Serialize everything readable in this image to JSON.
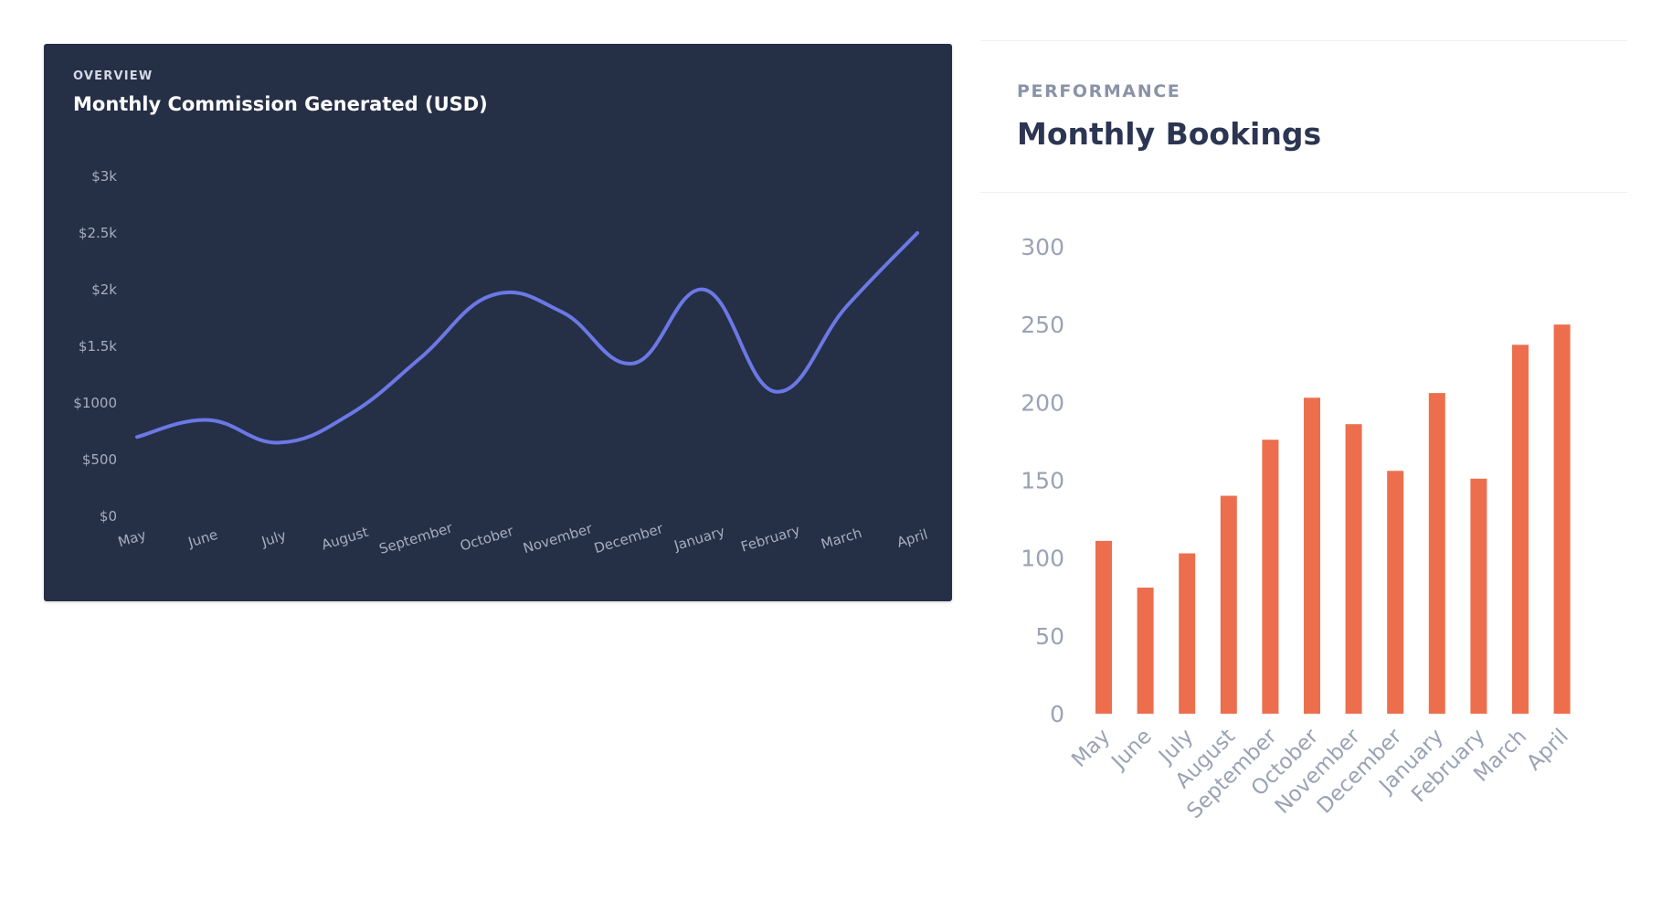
{
  "commission_card": {
    "eyebrow": "OVERVIEW",
    "title": "Monthly Commission Generated (USD)"
  },
  "bookings_card": {
    "eyebrow": "PERFORMANCE",
    "title": "Monthly Bookings"
  },
  "colors": {
    "dark_card_bg": "#252f46",
    "line": "#6b78e5",
    "bar": "#ed6e4d",
    "axis_text_dark": "#a7aec0",
    "axis_text_light": "#9aa2b4"
  },
  "chart_data": [
    {
      "type": "line",
      "x": [
        "May",
        "June",
        "July",
        "August",
        "September",
        "October",
        "November",
        "December",
        "January",
        "February",
        "March",
        "April"
      ],
      "series": [
        {
          "values": [
            700,
            850,
            650,
            900,
            1400,
            1950,
            1800,
            1350,
            2000,
            1100,
            1850,
            2500
          ]
        }
      ],
      "yticks": [
        "$0",
        "$500",
        "$1000",
        "$1.5k",
        "$2k",
        "$2.5k",
        "$3k"
      ],
      "ytick_values": [
        0,
        500,
        1000,
        1500,
        2000,
        2500,
        3000
      ],
      "ylim": [
        0,
        3000
      ],
      "grid": false,
      "title": "Monthly Commission Generated (USD)"
    },
    {
      "type": "bar",
      "categories": [
        "May",
        "June",
        "July",
        "August",
        "September",
        "October",
        "November",
        "December",
        "January",
        "February",
        "March",
        "April"
      ],
      "series": [
        {
          "values": [
            111,
            81,
            103,
            140,
            176,
            203,
            186,
            156,
            206,
            151,
            237,
            250
          ]
        }
      ],
      "yticks": [
        "0",
        "50",
        "100",
        "150",
        "200",
        "250",
        "300"
      ],
      "ytick_values": [
        0,
        50,
        100,
        150,
        200,
        250,
        300
      ],
      "ylim": [
        0,
        300
      ],
      "grid": false,
      "title": "Monthly Bookings"
    }
  ]
}
